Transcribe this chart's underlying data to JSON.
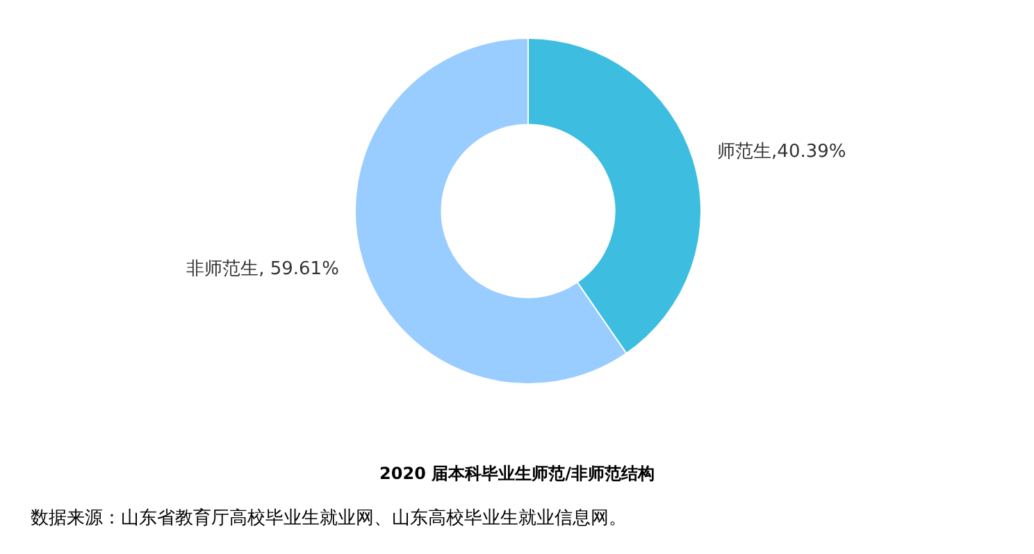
{
  "chart_data": {
    "type": "donut",
    "title": "2020 届本科毕业生师范/非师范结构",
    "categories": [
      "师范生",
      "非师范生"
    ],
    "values": [
      40.39,
      59.61
    ],
    "colors": [
      "#3dbde0",
      "#99ccff"
    ],
    "value_labels": [
      ",40.39%",
      ", 59.61%"
    ],
    "legend": false,
    "annotations": [
      "数据来源：山东省教育厅高校毕业生就业网、山东高校毕业生就业信息网。"
    ]
  }
}
